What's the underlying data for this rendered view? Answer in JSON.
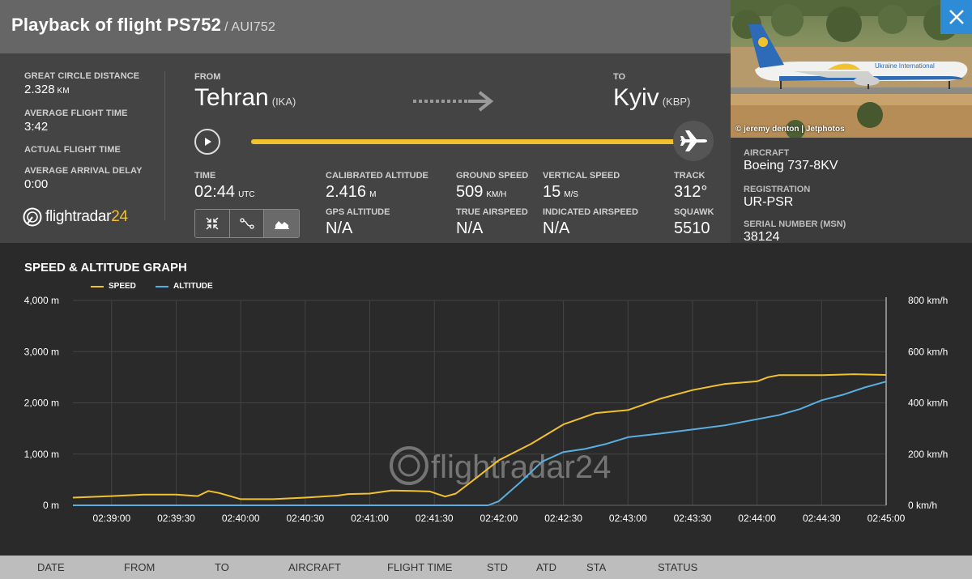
{
  "header": {
    "title": "Playback of flight PS752",
    "subtitle": "/ AUI752"
  },
  "stats": {
    "great_circle_label": "GREAT CIRCLE DISTANCE",
    "great_circle_value": "2.328",
    "great_circle_unit": "KM",
    "avg_flight_time_label": "AVERAGE FLIGHT TIME",
    "avg_flight_time_value": "3:42",
    "actual_flight_time_label": "ACTUAL FLIGHT TIME",
    "avg_arrival_delay_label": "AVERAGE ARRIVAL DELAY",
    "avg_arrival_delay_value": "0:00"
  },
  "logo": {
    "text": "flightradar",
    "number": "24"
  },
  "route": {
    "from_label": "FROM",
    "from_city": "Tehran",
    "from_iata": "(IKA)",
    "to_label": "TO",
    "to_city": "Kyiv",
    "to_iata": "(KBP)"
  },
  "playback": {
    "progress": 1.0
  },
  "metrics": {
    "time_label": "TIME",
    "time_value": "02:44",
    "time_unit": "UTC",
    "cal_alt_label": "CALIBRATED ALTITUDE",
    "cal_alt_value": "2.416",
    "cal_alt_unit": "M",
    "gps_alt_label": "GPS ALTITUDE",
    "gps_alt_value": "N/A",
    "ground_speed_label": "GROUND SPEED",
    "ground_speed_value": "509",
    "ground_speed_unit": "KM/H",
    "true_airspeed_label": "TRUE AIRSPEED",
    "true_airspeed_value": "N/A",
    "vertical_speed_label": "VERTICAL SPEED",
    "vertical_speed_value": "15",
    "vertical_speed_unit": "M/S",
    "indicated_airspeed_label": "INDICATED AIRSPEED",
    "indicated_airspeed_value": "N/A",
    "track_label": "TRACK",
    "track_value": "312°",
    "squawk_label": "SQUAWK",
    "squawk_value": "5510"
  },
  "aircraft": {
    "photo_credit": "© jeremy denton | Jetphotos",
    "photo_livery_text": "Ukraine International",
    "aircraft_label": "AIRCRAFT",
    "aircraft_value": "Boeing 737-8KV",
    "registration_label": "REGISTRATION",
    "registration_value": "UR-PSR",
    "serial_label": "SERIAL NUMBER (MSN)",
    "serial_value": "38124"
  },
  "graph": {
    "title": "SPEED & ALTITUDE GRAPH",
    "legend_speed": "SPEED",
    "legend_altitude": "ALTITUDE",
    "watermark": "flightradar24"
  },
  "colors": {
    "speed": "#f2c12e",
    "altitude": "#5aaee0",
    "close": "#2e8bd6"
  },
  "chart_data": {
    "type": "line",
    "title": "SPEED & ALTITUDE GRAPH",
    "x_ticks": [
      "02:39:00",
      "02:39:30",
      "02:40:00",
      "02:40:30",
      "02:41:00",
      "02:41:30",
      "02:42:00",
      "02:42:30",
      "02:43:00",
      "02:43:30",
      "02:44:00",
      "02:44:30",
      "02:45:00"
    ],
    "y_left_ticks": [
      "0 m",
      "1,000 m",
      "2,000 m",
      "3,000 m",
      "4,000 m"
    ],
    "y_right_ticks": [
      "0 km/h",
      "200 km/h",
      "400 km/h",
      "600 km/h",
      "800 km/h"
    ],
    "y_left_range": [
      0,
      4000
    ],
    "y_right_range": [
      0,
      800
    ],
    "x_range": [
      "02:38:42",
      "02:45:00"
    ],
    "grid": true,
    "legend": "top-left",
    "series": [
      {
        "name": "SPEED",
        "axis": "right",
        "unit": "km/h",
        "points": [
          [
            "02:38:42",
            30
          ],
          [
            "02:39:00",
            36
          ],
          [
            "02:39:15",
            42
          ],
          [
            "02:39:30",
            42
          ],
          [
            "02:39:40",
            36
          ],
          [
            "02:39:45",
            56
          ],
          [
            "02:39:50",
            48
          ],
          [
            "02:40:00",
            24
          ],
          [
            "02:40:15",
            24
          ],
          [
            "02:40:30",
            30
          ],
          [
            "02:40:45",
            38
          ],
          [
            "02:40:50",
            44
          ],
          [
            "02:41:00",
            46
          ],
          [
            "02:41:10",
            58
          ],
          [
            "02:41:20",
            56
          ],
          [
            "02:41:28",
            54
          ],
          [
            "02:41:35",
            34
          ],
          [
            "02:41:40",
            46
          ],
          [
            "02:41:50",
            110
          ],
          [
            "02:42:00",
            176
          ],
          [
            "02:42:15",
            240
          ],
          [
            "02:42:30",
            316
          ],
          [
            "02:42:45",
            360
          ],
          [
            "02:43:00",
            372
          ],
          [
            "02:43:15",
            416
          ],
          [
            "02:43:30",
            450
          ],
          [
            "02:43:45",
            474
          ],
          [
            "02:44:00",
            484
          ],
          [
            "02:44:05",
            500
          ],
          [
            "02:44:10",
            508
          ],
          [
            "02:44:30",
            508
          ],
          [
            "02:44:45",
            512
          ],
          [
            "02:45:00",
            509
          ]
        ]
      },
      {
        "name": "ALTITUDE",
        "axis": "left",
        "unit": "m",
        "points": [
          [
            "02:38:42",
            0
          ],
          [
            "02:41:55",
            0
          ],
          [
            "02:42:00",
            80
          ],
          [
            "02:42:10",
            450
          ],
          [
            "02:42:20",
            850
          ],
          [
            "02:42:30",
            1040
          ],
          [
            "02:42:40",
            1100
          ],
          [
            "02:42:50",
            1200
          ],
          [
            "02:43:00",
            1330
          ],
          [
            "02:43:15",
            1400
          ],
          [
            "02:43:30",
            1480
          ],
          [
            "02:43:45",
            1560
          ],
          [
            "02:44:00",
            1680
          ],
          [
            "02:44:10",
            1760
          ],
          [
            "02:44:20",
            1880
          ],
          [
            "02:44:30",
            2050
          ],
          [
            "02:44:40",
            2160
          ],
          [
            "02:44:50",
            2300
          ],
          [
            "02:45:00",
            2416
          ]
        ]
      }
    ]
  },
  "footer": {
    "columns": [
      "DATE",
      "FROM",
      "TO",
      "AIRCRAFT",
      "FLIGHT TIME",
      "STD",
      "ATD",
      "STA",
      "STATUS"
    ]
  }
}
